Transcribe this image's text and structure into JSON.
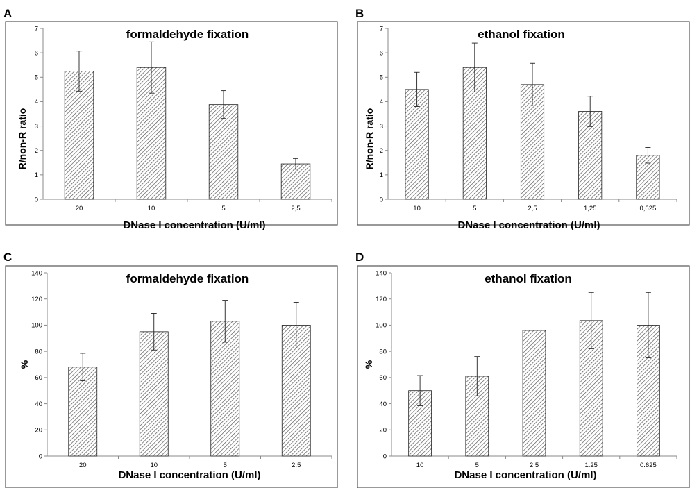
{
  "chart_data": [
    {
      "panel": "A",
      "type": "bar",
      "title": "formaldehyde fixation",
      "xlabel": "DNase I concentration (U/ml)",
      "ylabel": "R/non-R ratio",
      "ylim": [
        0,
        7
      ],
      "yticks": [
        "0",
        "1",
        "2",
        "3",
        "4",
        "5",
        "6",
        "7"
      ],
      "categories": [
        "20",
        "10",
        "5",
        "2,5"
      ],
      "values": [
        5.25,
        5.4,
        3.88,
        1.45
      ],
      "errors": [
        0.82,
        1.05,
        0.57,
        0.22
      ]
    },
    {
      "panel": "B",
      "type": "bar",
      "title": "ethanol fixation",
      "xlabel": "DNase I concentration (U/ml)",
      "ylabel": "R/non-R ratio",
      "ylim": [
        0,
        7
      ],
      "yticks": [
        "0",
        "1",
        "2",
        "3",
        "4",
        "5",
        "6",
        "7"
      ],
      "categories": [
        "10",
        "5",
        "2,5",
        "1,25",
        "0,625"
      ],
      "values": [
        4.5,
        5.4,
        4.7,
        3.6,
        1.8
      ],
      "errors": [
        0.7,
        1.0,
        0.87,
        0.62,
        0.32
      ]
    },
    {
      "panel": "C",
      "type": "bar",
      "title": "formaldehyde fixation",
      "xlabel": "DNase I concentration (U/ml)",
      "ylabel": "%",
      "ylim": [
        0,
        140
      ],
      "yticks": [
        "0",
        "20",
        "40",
        "60",
        "80",
        "100",
        "120",
        "140"
      ],
      "categories": [
        "20",
        "10",
        "5",
        "2.5"
      ],
      "values": [
        68,
        95,
        103,
        100
      ],
      "errors": [
        10.5,
        14,
        16,
        17.5
      ]
    },
    {
      "panel": "D",
      "type": "bar",
      "title": "ethanol fixation",
      "xlabel": "DNase I concentration (U/ml)",
      "ylabel": "%",
      "ylim": [
        0,
        140
      ],
      "yticks": [
        "0",
        "20",
        "40",
        "60",
        "80",
        "100",
        "120",
        "140"
      ],
      "categories": [
        "10",
        "5",
        "2.5",
        "1.25",
        "0.625"
      ],
      "values": [
        50,
        61,
        96,
        103.5,
        100
      ],
      "errors": [
        11.5,
        15,
        22.5,
        21.5,
        25
      ]
    }
  ]
}
